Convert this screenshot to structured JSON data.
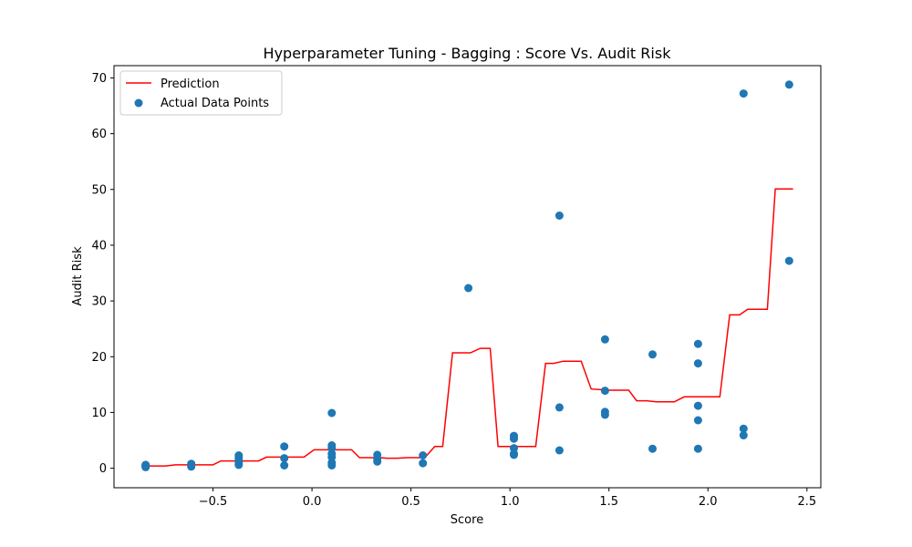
{
  "chart_data": {
    "type": "line+scatter",
    "title": "Hyperparameter Tuning - Bagging : Score Vs. Audit Risk",
    "xlabel": "Score",
    "ylabel": "Audit Risk",
    "xlim": [
      -1.0,
      2.57
    ],
    "ylim": [
      -3.5,
      72.2
    ],
    "xticks": [
      -0.5,
      0.0,
      0.5,
      1.0,
      1.5,
      2.0,
      2.5
    ],
    "yticks": [
      0,
      10,
      20,
      30,
      40,
      50,
      60,
      70
    ],
    "xtick_labels": [
      "−0.5",
      "0.0",
      "0.5",
      "1.0",
      "1.5",
      "2.0",
      "2.5"
    ],
    "ytick_labels": [
      "0",
      "10",
      "20",
      "30",
      "40",
      "50",
      "60",
      "70"
    ],
    "grid": false,
    "legend": {
      "placement": "top-left",
      "entries": [
        {
          "label": "Prediction",
          "kind": "line",
          "color": "#ff0000"
        },
        {
          "label": "Actual Data Points",
          "kind": "marker",
          "color": "#1f77b4"
        }
      ]
    },
    "series": [
      {
        "name": "Prediction",
        "kind": "line",
        "color": "#ff0000",
        "points": [
          [
            -0.84,
            0.4
          ],
          [
            -0.79,
            0.4
          ],
          [
            -0.74,
            0.4
          ],
          [
            -0.69,
            0.6
          ],
          [
            -0.64,
            0.6
          ],
          [
            -0.6,
            0.6
          ],
          [
            -0.55,
            0.6
          ],
          [
            -0.5,
            0.6
          ],
          [
            -0.46,
            1.3
          ],
          [
            -0.41,
            1.3
          ],
          [
            -0.36,
            1.3
          ],
          [
            -0.32,
            1.3
          ],
          [
            -0.27,
            1.3
          ],
          [
            -0.23,
            2.0
          ],
          [
            -0.18,
            2.0
          ],
          [
            -0.13,
            2.0
          ],
          [
            -0.09,
            2.0
          ],
          [
            -0.04,
            2.0
          ],
          [
            0.01,
            3.3
          ],
          [
            0.06,
            3.3
          ],
          [
            0.1,
            3.3
          ],
          [
            0.15,
            3.3
          ],
          [
            0.2,
            3.3
          ],
          [
            0.24,
            1.9
          ],
          [
            0.29,
            1.9
          ],
          [
            0.34,
            1.9
          ],
          [
            0.38,
            1.8
          ],
          [
            0.43,
            1.8
          ],
          [
            0.48,
            1.9
          ],
          [
            0.52,
            1.9
          ],
          [
            0.57,
            1.9
          ],
          [
            0.62,
            3.9
          ],
          [
            0.66,
            3.9
          ],
          [
            0.71,
            20.7
          ],
          [
            0.76,
            20.7
          ],
          [
            0.8,
            20.7
          ],
          [
            0.85,
            21.5
          ],
          [
            0.9,
            21.5
          ],
          [
            0.94,
            3.9
          ],
          [
            0.99,
            3.9
          ],
          [
            1.04,
            3.9
          ],
          [
            1.08,
            3.9
          ],
          [
            1.13,
            3.9
          ],
          [
            1.18,
            18.8
          ],
          [
            1.22,
            18.8
          ],
          [
            1.27,
            19.2
          ],
          [
            1.32,
            19.2
          ],
          [
            1.36,
            19.2
          ],
          [
            1.41,
            14.2
          ],
          [
            1.46,
            14.1
          ],
          [
            1.5,
            14.0
          ],
          [
            1.55,
            14.0
          ],
          [
            1.6,
            14.0
          ],
          [
            1.64,
            12.1
          ],
          [
            1.69,
            12.1
          ],
          [
            1.74,
            11.9
          ],
          [
            1.78,
            11.9
          ],
          [
            1.83,
            11.9
          ],
          [
            1.88,
            12.8
          ],
          [
            1.92,
            12.8
          ],
          [
            1.97,
            12.8
          ],
          [
            2.02,
            12.8
          ],
          [
            2.06,
            12.8
          ],
          [
            2.11,
            27.5
          ],
          [
            2.16,
            27.5
          ],
          [
            2.2,
            28.5
          ],
          [
            2.25,
            28.5
          ],
          [
            2.3,
            28.5
          ],
          [
            2.34,
            50.1
          ],
          [
            2.39,
            50.1
          ],
          [
            2.43,
            50.1
          ]
        ]
      },
      {
        "name": "Actual Data Points",
        "kind": "scatter",
        "color": "#1f77b4",
        "points": [
          [
            -0.84,
            0.2
          ],
          [
            -0.84,
            0.3
          ],
          [
            -0.84,
            0.4
          ],
          [
            -0.84,
            0.5
          ],
          [
            -0.84,
            0.6
          ],
          [
            -0.84,
            0.3
          ],
          [
            -0.61,
            0.3
          ],
          [
            -0.61,
            0.5
          ],
          [
            -0.61,
            0.8
          ],
          [
            -0.37,
            0.6
          ],
          [
            -0.37,
            1.0
          ],
          [
            -0.37,
            1.5
          ],
          [
            -0.37,
            1.9
          ],
          [
            -0.37,
            2.3
          ],
          [
            -0.14,
            0.5
          ],
          [
            -0.14,
            1.8
          ],
          [
            -0.14,
            3.9
          ],
          [
            0.1,
            0.5
          ],
          [
            0.1,
            1.0
          ],
          [
            0.1,
            2.0
          ],
          [
            0.1,
            2.6
          ],
          [
            0.1,
            3.6
          ],
          [
            0.1,
            4.1
          ],
          [
            0.1,
            9.9
          ],
          [
            0.33,
            1.2
          ],
          [
            0.33,
            1.7
          ],
          [
            0.33,
            2.4
          ],
          [
            0.56,
            0.9
          ],
          [
            0.56,
            2.3
          ],
          [
            0.79,
            32.3
          ],
          [
            1.02,
            2.4
          ],
          [
            1.02,
            2.6
          ],
          [
            1.02,
            3.6
          ],
          [
            1.02,
            5.3
          ],
          [
            1.02,
            5.8
          ],
          [
            1.25,
            3.2
          ],
          [
            1.25,
            10.9
          ],
          [
            1.25,
            45.3
          ],
          [
            1.48,
            9.6
          ],
          [
            1.48,
            10.1
          ],
          [
            1.48,
            13.9
          ],
          [
            1.48,
            23.1
          ],
          [
            1.72,
            3.5
          ],
          [
            1.72,
            20.4
          ],
          [
            1.95,
            3.5
          ],
          [
            1.95,
            8.6
          ],
          [
            1.95,
            11.2
          ],
          [
            1.95,
            18.8
          ],
          [
            1.95,
            22.3
          ],
          [
            2.18,
            5.9
          ],
          [
            2.18,
            7.1
          ],
          [
            2.18,
            67.2
          ],
          [
            2.41,
            37.2
          ],
          [
            2.41,
            68.8
          ]
        ]
      }
    ]
  }
}
